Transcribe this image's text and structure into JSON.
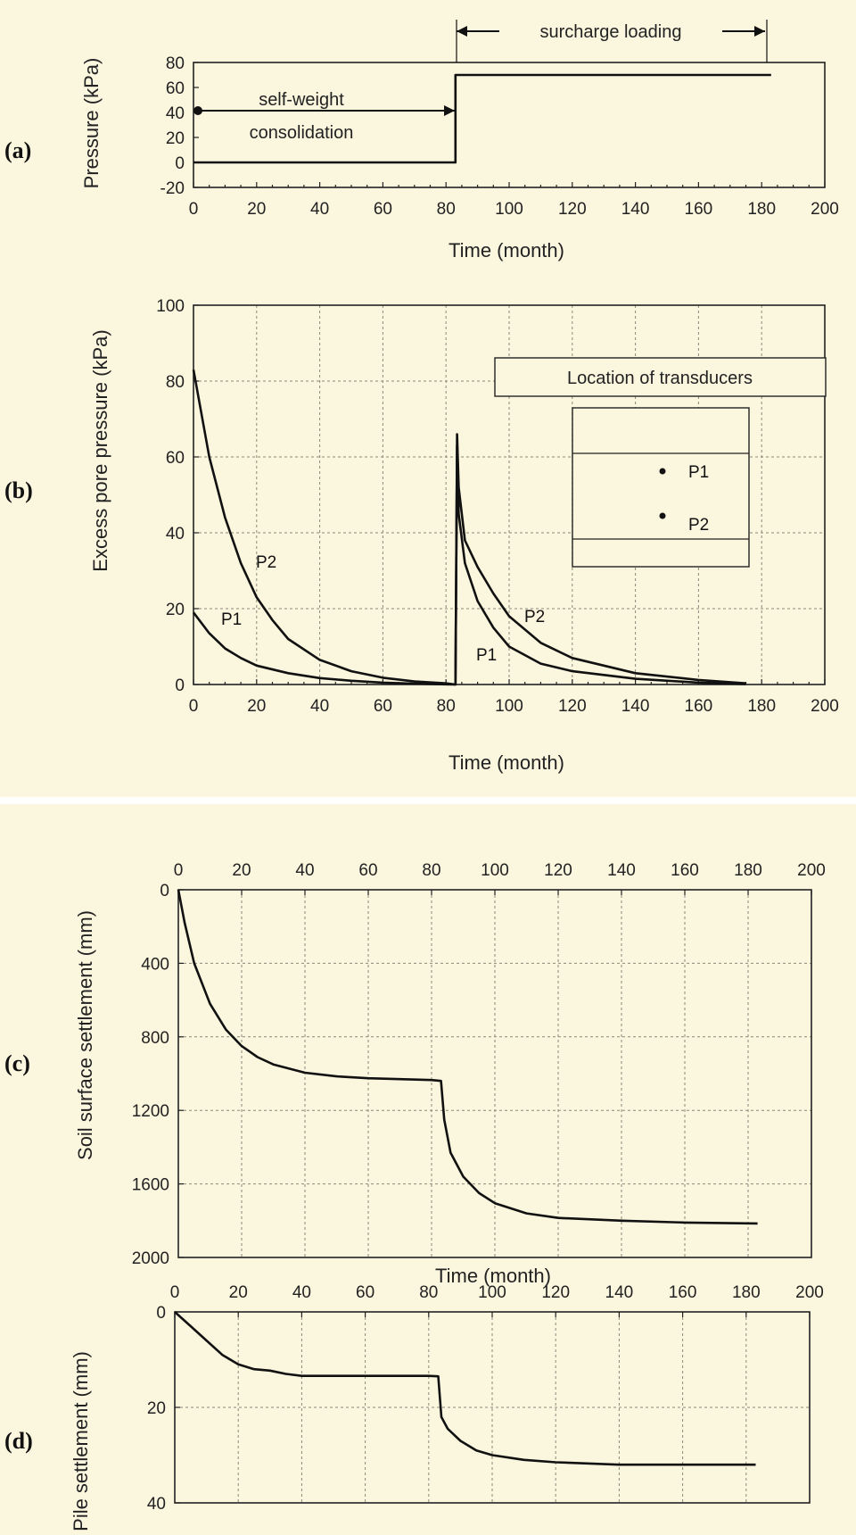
{
  "panel_labels": [
    "(a)",
    "(b)",
    "(c)",
    "(d)"
  ],
  "annotations": {
    "self_weight_line1": "self-weight",
    "self_weight_line2": "consolidation",
    "surcharge": "surcharge loading",
    "location_title": "Location of transducers",
    "p1_marker": "P1",
    "p2_marker": "P2"
  },
  "chart_data": [
    {
      "id": "a",
      "type": "line",
      "xlabel": "Time (month)",
      "ylabel": "Pressure (kPa)",
      "xlim": [
        0,
        200
      ],
      "ylim": [
        -20,
        80
      ],
      "xticks": [
        0,
        20,
        40,
        60,
        80,
        100,
        120,
        140,
        160,
        180,
        200
      ],
      "yticks": [
        -20,
        0,
        20,
        40,
        60,
        80
      ],
      "x_axis_position": "bottom",
      "y_inverted": false,
      "grid": false,
      "series": [
        {
          "x": [
            0,
            83,
            83,
            183
          ],
          "y": [
            0,
            0,
            70,
            70
          ]
        }
      ]
    },
    {
      "id": "b",
      "type": "line",
      "xlabel": "Time (month)",
      "ylabel": "Excess pore pressure (kPa)",
      "xlim": [
        0,
        200
      ],
      "ylim": [
        0,
        100
      ],
      "xticks": [
        0,
        20,
        40,
        60,
        80,
        100,
        120,
        140,
        160,
        180,
        200
      ],
      "yticks": [
        0,
        20,
        40,
        60,
        80,
        100
      ],
      "x_axis_position": "bottom",
      "y_inverted": false,
      "grid": true,
      "series": [
        {
          "name": "P2",
          "x": [
            0,
            5,
            10,
            15,
            20,
            25,
            30,
            40,
            50,
            60,
            70,
            80,
            83,
            83.5,
            84,
            86,
            90,
            95,
            100,
            110,
            120,
            140,
            160,
            175
          ],
          "y": [
            83,
            60,
            44,
            32,
            23,
            17,
            12,
            6.5,
            3.5,
            1.8,
            0.8,
            0.3,
            0,
            66,
            52,
            38,
            31,
            24,
            18,
            11,
            7,
            3,
            1.2,
            0.3
          ]
        },
        {
          "name": "P1",
          "x": [
            0,
            5,
            10,
            15,
            20,
            30,
            40,
            50,
            60,
            70,
            80,
            83,
            83.5,
            84,
            86,
            90,
            95,
            100,
            110,
            120,
            140,
            160,
            175
          ],
          "y": [
            19,
            13.5,
            9.5,
            7,
            5,
            3,
            1.7,
            1,
            0.5,
            0.2,
            0.05,
            0,
            63,
            45,
            32,
            22,
            15,
            10,
            5.5,
            3.5,
            1.5,
            0.5,
            0.1
          ]
        }
      ]
    },
    {
      "id": "c",
      "type": "line",
      "xlabel": "Time (month)",
      "ylabel": "Soil surface settlement (mm)",
      "xlim": [
        0,
        200
      ],
      "ylim": [
        0,
        2000
      ],
      "xticks": [
        0,
        20,
        40,
        60,
        80,
        100,
        120,
        140,
        160,
        180,
        200
      ],
      "yticks": [
        0,
        400,
        800,
        1200,
        1600,
        2000
      ],
      "x_axis_position": "top",
      "y_inverted": true,
      "grid": true,
      "series": [
        {
          "x": [
            0,
            2,
            5,
            10,
            15,
            20,
            25,
            30,
            40,
            50,
            60,
            70,
            80,
            83,
            84,
            86,
            90,
            95,
            100,
            110,
            120,
            140,
            160,
            183
          ],
          "y": [
            0,
            180,
            400,
            620,
            760,
            850,
            910,
            950,
            995,
            1015,
            1025,
            1030,
            1035,
            1040,
            1250,
            1430,
            1560,
            1650,
            1705,
            1760,
            1785,
            1800,
            1810,
            1815
          ]
        }
      ]
    },
    {
      "id": "d",
      "type": "line",
      "xlabel": "",
      "ylabel": "Pile settlement (mm)",
      "xlim": [
        0,
        200
      ],
      "ylim": [
        0,
        40
      ],
      "xticks": [
        0,
        20,
        40,
        60,
        80,
        100,
        120,
        140,
        160,
        180,
        200
      ],
      "yticks": [
        0,
        20,
        40
      ],
      "x_axis_position": "top",
      "y_inverted": true,
      "grid": true,
      "series": [
        {
          "x": [
            0,
            5,
            10,
            15,
            20,
            25,
            30,
            35,
            40,
            60,
            80,
            83,
            84,
            86,
            90,
            95,
            100,
            110,
            120,
            140,
            160,
            183
          ],
          "y": [
            0,
            3,
            6,
            9,
            11,
            12,
            12.3,
            13,
            13.4,
            13.4,
            13.4,
            13.5,
            22,
            24.5,
            27,
            29,
            30,
            31,
            31.5,
            32,
            32,
            32
          ]
        }
      ]
    }
  ]
}
